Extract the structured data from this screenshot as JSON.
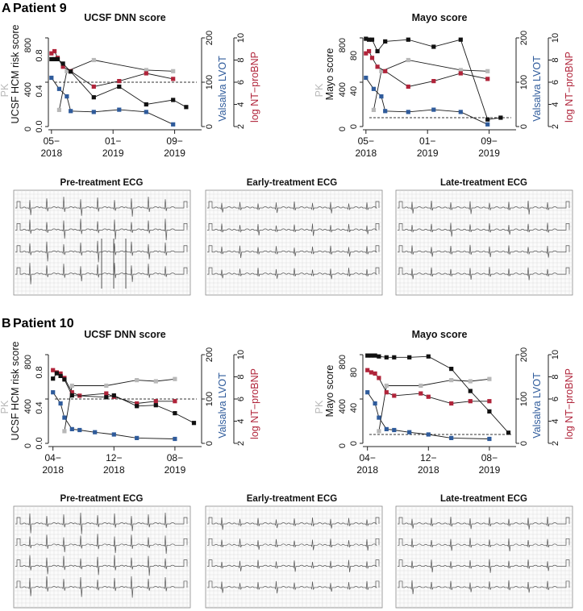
{
  "figure": {
    "panels": [
      {
        "letter": "A",
        "title": "Patient 9"
      },
      {
        "letter": "B",
        "title": "Patient 10"
      }
    ],
    "ecg_titles": [
      "Pre-treatment ECG",
      "Early-treatment ECG",
      "Late-treatment ECG"
    ]
  },
  "colors": {
    "score": "#111111",
    "pk": "#b8b8b8",
    "lvot": "#2f5b9b",
    "ntprobnp": "#b0243a",
    "axis": "#222222",
    "ecg_grid": "#d9d9d9",
    "ecg_trace": "#555555"
  },
  "chart_data": [
    {
      "type": "line",
      "patient": "Patient 9",
      "title": "UCSF DNN score",
      "left_outer_label": "PK",
      "left_inner_label": "UCSF HCM risk score",
      "right_inner_label": "Valsalva LVOT",
      "right_outer_label": "log NT−proBNP",
      "x_tick_labels": [
        [
          "05−",
          "2018"
        ],
        [
          "01−",
          "2019"
        ],
        [
          "09−",
          "2019"
        ]
      ],
      "x_ticks_month_index": [
        0,
        8,
        16
      ],
      "x_range_month_index": [
        -0.4,
        19.5
      ],
      "pk_axis": {
        "ticks": [
          "0",
          "400",
          "800"
        ],
        "range": [
          0,
          800
        ]
      },
      "score_axis": {
        "ticks": [
          "0.0",
          "0.4",
          "0.8"
        ],
        "range": [
          0,
          1.0
        ]
      },
      "lvot_axis": {
        "ticks": [
          "0",
          "100",
          "200"
        ],
        "range": [
          0,
          200
        ]
      },
      "bnp_axis": {
        "ticks": [
          "2",
          "4",
          "6",
          "8",
          "10"
        ],
        "range": [
          2,
          10
        ]
      },
      "threshold": 0.5,
      "series": [
        {
          "name": "score",
          "x": [
            0.0,
            0.4,
            0.8,
            1.5,
            2.5,
            5.5,
            8.8,
            12.3,
            15.8,
            17.5
          ],
          "values": [
            0.76,
            0.76,
            0.76,
            0.71,
            0.62,
            0.33,
            0.45,
            0.25,
            0.3,
            0.22
          ]
        },
        {
          "name": "PK",
          "x": [
            1.0,
            2.0,
            5.5,
            12.3,
            15.8
          ],
          "values": [
            150,
            500,
            600,
            510,
            500
          ]
        },
        {
          "name": "Valsalva LVOT",
          "x": [
            0.0,
            1.0,
            2.0,
            2.5,
            5.5,
            8.8,
            12.3,
            15.8
          ],
          "values": [
            110,
            85,
            68,
            35,
            33,
            38,
            33,
            5
          ]
        },
        {
          "name": "log NT−proBNP",
          "x": [
            0.0,
            0.4,
            0.8,
            1.5,
            2.5,
            5.5,
            8.8,
            12.3,
            15.8
          ],
          "values": [
            8.6,
            8.8,
            8.2,
            7.4,
            7.0,
            5.6,
            6.1,
            6.8,
            6.3
          ]
        }
      ]
    },
    {
      "type": "line",
      "patient": "Patient 9",
      "title": "Mayo score",
      "left_outer_label": "PK",
      "left_inner_label": "Mayo score",
      "right_inner_label": "Valsalva LVOT",
      "right_outer_label": "log NT−proBNP",
      "x_tick_labels": [
        [
          "05−",
          "2018"
        ],
        [
          "01−",
          "2019"
        ],
        [
          "09−",
          "2019"
        ]
      ],
      "x_ticks_month_index": [
        0,
        8,
        16
      ],
      "x_range_month_index": [
        -0.4,
        19.5
      ],
      "pk_axis": {
        "ticks": [
          "0",
          "400",
          "800"
        ],
        "range": [
          0,
          800
        ]
      },
      "score_axis": {
        "ticks": [
          "0",
          "40",
          "80"
        ],
        "range": [
          0,
          100
        ]
      },
      "lvot_axis": {
        "ticks": [
          "0",
          "100",
          "200"
        ],
        "range": [
          0,
          200
        ]
      },
      "bnp_axis": {
        "ticks": [
          "2",
          "4",
          "6",
          "8",
          "10"
        ],
        "range": [
          2,
          10
        ]
      },
      "threshold": 10,
      "series": [
        {
          "name": "score",
          "x": [
            0.0,
            0.4,
            0.8,
            1.5,
            2.5,
            5.5,
            8.8,
            12.3,
            15.8,
            17.5
          ],
          "values": [
            99,
            98,
            98,
            85,
            96,
            98,
            90,
            98,
            8,
            10
          ]
        },
        {
          "name": "PK",
          "x": [
            1.0,
            2.0,
            5.5,
            12.3,
            15.8
          ],
          "values": [
            150,
            500,
            600,
            510,
            500
          ]
        },
        {
          "name": "Valsalva LVOT",
          "x": [
            0.0,
            1.0,
            2.0,
            2.5,
            5.5,
            8.8,
            12.3,
            15.8
          ],
          "values": [
            110,
            85,
            68,
            35,
            33,
            38,
            33,
            5
          ]
        },
        {
          "name": "log NT−proBNP",
          "x": [
            0.0,
            0.4,
            0.8,
            1.5,
            2.5,
            5.5,
            8.8,
            12.3,
            15.8
          ],
          "values": [
            8.6,
            8.8,
            8.2,
            7.4,
            7.0,
            5.6,
            6.1,
            6.8,
            6.3
          ]
        }
      ]
    },
    {
      "type": "line",
      "patient": "Patient 10",
      "title": "UCSF DNN score",
      "left_outer_label": "PK",
      "left_inner_label": "UCSF HCM risk score",
      "right_inner_label": "Valsalva LVOT",
      "right_outer_label": "log NT−proBNP",
      "x_tick_labels": [
        [
          "04−",
          "2018"
        ],
        [
          "12−",
          "2018"
        ],
        [
          "08−",
          "2019"
        ]
      ],
      "x_ticks_month_index": [
        0,
        8,
        16
      ],
      "x_range_month_index": [
        -0.6,
        19.5
      ],
      "pk_axis": {
        "ticks": [
          "0",
          "400",
          "800"
        ],
        "range": [
          0,
          800
        ]
      },
      "score_axis": {
        "ticks": [
          "0.0",
          "0.4",
          "0.8"
        ],
        "range": [
          0,
          1.0
        ]
      },
      "lvot_axis": {
        "ticks": [
          "0",
          "100",
          "200"
        ],
        "range": [
          0,
          200
        ]
      },
      "bnp_axis": {
        "ticks": [
          "2",
          "4",
          "6",
          "8",
          "10"
        ],
        "range": [
          2,
          10
        ]
      },
      "threshold": 0.5,
      "series": [
        {
          "name": "score",
          "x": [
            0.0,
            0.5,
            1.0,
            1.5,
            2.5,
            7.0,
            8.0,
            11.0,
            13.5,
            16.0,
            18.5
          ],
          "values": [
            0.73,
            0.79,
            0.76,
            0.72,
            0.54,
            0.52,
            0.54,
            0.42,
            0.43,
            0.34,
            0.23
          ]
        },
        {
          "name": "PK",
          "x": [
            1.5,
            2.5,
            7.0,
            11.0,
            13.5,
            16.0
          ],
          "values": [
            110,
            520,
            520,
            570,
            560,
            580
          ]
        },
        {
          "name": "Valsalva LVOT",
          "x": [
            0.0,
            1.0,
            1.5,
            2.5,
            3.5,
            5.5,
            8.0,
            11.0,
            16.0
          ],
          "values": [
            115,
            90,
            58,
            32,
            30,
            25,
            20,
            12,
            10
          ]
        },
        {
          "name": "log NT−proBNP",
          "x": [
            0.0,
            0.5,
            1.0,
            1.5,
            2.5,
            3.5,
            7.0,
            8.0,
            11.0,
            13.5,
            16.0
          ],
          "values": [
            8.6,
            8.4,
            8.3,
            7.9,
            6.6,
            6.3,
            6.5,
            6.2,
            5.6,
            5.8,
            5.8
          ]
        }
      ]
    },
    {
      "type": "line",
      "patient": "Patient 10",
      "title": "Mayo score",
      "left_outer_label": "PK",
      "left_inner_label": "Mayo score",
      "right_inner_label": "Valsalva LVOT",
      "right_outer_label": "log NT−proBNP",
      "x_tick_labels": [
        [
          "04−",
          "2018"
        ],
        [
          "12−",
          "2018"
        ],
        [
          "08−",
          "2019"
        ]
      ],
      "x_ticks_month_index": [
        0,
        8,
        16
      ],
      "x_range_month_index": [
        -0.6,
        19.5
      ],
      "pk_axis": {
        "ticks": [
          "0",
          "400",
          "800"
        ],
        "range": [
          0,
          800
        ]
      },
      "score_axis": {
        "ticks": [
          "0",
          "40",
          "80"
        ],
        "range": [
          0,
          100
        ]
      },
      "lvot_axis": {
        "ticks": [
          "0",
          "100",
          "200"
        ],
        "range": [
          0,
          200
        ]
      },
      "bnp_axis": {
        "ticks": [
          "2",
          "4",
          "6",
          "8",
          "10"
        ],
        "range": [
          2,
          10
        ]
      },
      "threshold": 10,
      "series": [
        {
          "name": "score",
          "x": [
            0.0,
            0.5,
            1.0,
            1.5,
            2.5,
            3.5,
            5.5,
            8.0,
            11.0,
            13.5,
            16.0,
            18.5
          ],
          "values": [
            99,
            99,
            99,
            98,
            97,
            97,
            97,
            98,
            84,
            59,
            36,
            12
          ]
        },
        {
          "name": "PK",
          "x": [
            1.5,
            2.5,
            7.0,
            11.0,
            13.5,
            16.0
          ],
          "values": [
            110,
            520,
            520,
            570,
            560,
            580
          ]
        },
        {
          "name": "Valsalva LVOT",
          "x": [
            0.0,
            1.0,
            1.5,
            2.5,
            3.5,
            5.5,
            8.0,
            11.0,
            16.0
          ],
          "values": [
            115,
            90,
            58,
            32,
            30,
            25,
            20,
            12,
            10
          ]
        },
        {
          "name": "log NT−proBNP",
          "x": [
            0.0,
            0.5,
            1.0,
            1.5,
            2.5,
            3.5,
            7.0,
            8.0,
            11.0,
            13.5,
            16.0
          ],
          "values": [
            8.6,
            8.4,
            8.3,
            7.9,
            6.6,
            6.3,
            6.5,
            6.2,
            5.6,
            5.8,
            5.8
          ]
        }
      ]
    }
  ]
}
